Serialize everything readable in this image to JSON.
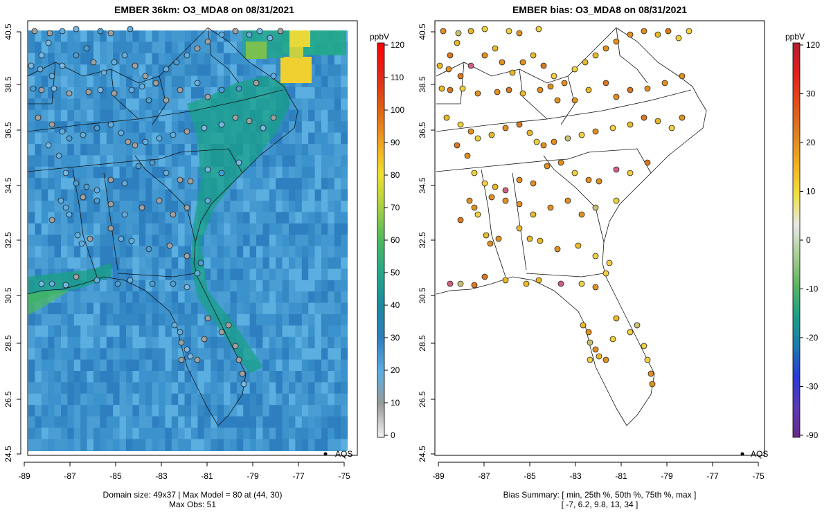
{
  "left": {
    "title": "EMBER 36km: O3_MDA8 on 08/31/2021",
    "x_ticks": [
      "-89",
      "-87",
      "-85",
      "-83",
      "-81",
      "-79",
      "-77",
      "-75"
    ],
    "y_ticks": [
      "40.5",
      "38.5",
      "36.5",
      "34.5",
      "32.5",
      "30.5",
      "28.5",
      "26.5",
      "24.5"
    ],
    "legend_label": "AQS",
    "caption_line1": "Domain size: 49x37 | Max Model = 80 at (44, 30)",
    "caption_line2": "Max Obs: 51",
    "colorbar": {
      "unit": "ppbV",
      "ticks": [
        "120",
        "110",
        "100",
        "90",
        "80",
        "70",
        "60",
        "50",
        "40",
        "30",
        "20",
        "10",
        "0"
      ],
      "colors": [
        "#f2f2f2",
        "#9a9a9a",
        "#5aaee0",
        "#2e7fc0",
        "#1a8aa0",
        "#22a88a",
        "#4cba5a",
        "#a8d040",
        "#f0e030",
        "#f0a020",
        "#e06010",
        "#e02818",
        "#ff0000"
      ]
    }
  },
  "right": {
    "title": "EMBER bias: O3_MDA8 on 08/31/2021",
    "x_ticks": [
      "-89",
      "-87",
      "-85",
      "-83",
      "-81",
      "-79",
      "-77",
      "-75"
    ],
    "y_ticks": [
      "40.5",
      "38.5",
      "36.5",
      "34.5",
      "32.5",
      "30.5",
      "28.5",
      "26.5",
      "24.5"
    ],
    "legend_label": "AQS",
    "caption_line1": "Bias Summary: [ min, 25th %, 50th %, 75th %, max ]",
    "caption_line2": "[ -7,   6.2,   9.8,   13,   34 ]",
    "colorbar": {
      "unit": "ppbV",
      "ticks": [
        "120",
        "30",
        "20",
        "10",
        "0",
        "-10",
        "-20",
        "-30",
        "-90"
      ],
      "colors": [
        "#6a2a8a",
        "#5a3ab8",
        "#2a3ad8",
        "#1a7ab0",
        "#1aa088",
        "#5ab460",
        "#a8d090",
        "#e8e8e8",
        "#f0e040",
        "#f0b020",
        "#e08020",
        "#e05018",
        "#e02020",
        "#b02030"
      ]
    }
  },
  "map_colors": {
    "ocean_base": "#3c92cc",
    "land_base": "#4a9ed4",
    "coastal_green": "#1aa088",
    "hotspot_yellow": "#f0d030",
    "site_gray": "#a0a0a0",
    "site_blue": "#62aee0",
    "bias_orange": "#e0a020",
    "bias_yellow": "#f0d040",
    "bias_pink": "#d06080"
  }
}
